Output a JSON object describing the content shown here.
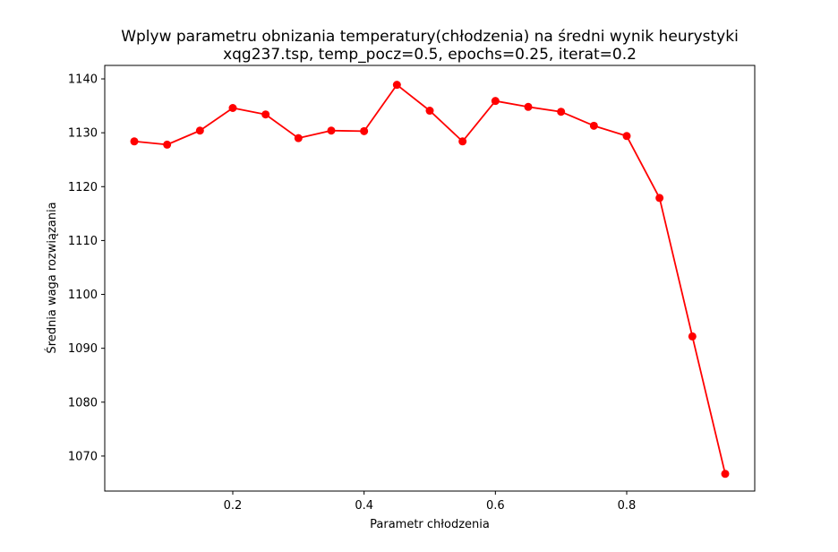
{
  "chart_data": {
    "type": "line",
    "title": "Wplyw parametru obnizania temperatury(chłodzenia) na średni wynik heurystyki",
    "subtitle": "xqg237.tsp, temp_pocz=0.5, epochs=0.25, iterat=0.2",
    "xlabel": "Parametr chłodzenia",
    "ylabel": "Średnia waga rozwiązania",
    "xlim": [
      0.005,
      0.995
    ],
    "ylim": [
      1063.5,
      1142.5
    ],
    "xticks": [
      0.2,
      0.4,
      0.6,
      0.8
    ],
    "xtick_labels": [
      "0.2",
      "0.4",
      "0.6",
      "0.8"
    ],
    "yticks": [
      1070,
      1080,
      1090,
      1100,
      1110,
      1120,
      1130,
      1140
    ],
    "ytick_labels": [
      "1070",
      "1080",
      "1090",
      "1100",
      "1110",
      "1120",
      "1130",
      "1140"
    ],
    "grid": false,
    "series": [
      {
        "color": "#ff0000",
        "marker": "circle",
        "x": [
          0.05,
          0.1,
          0.15,
          0.2,
          0.25,
          0.3,
          0.35,
          0.4,
          0.45,
          0.5,
          0.55,
          0.6,
          0.65,
          0.7,
          0.75,
          0.8,
          0.85,
          0.9,
          0.95
        ],
        "y": [
          1128.4,
          1127.8,
          1130.4,
          1134.6,
          1133.4,
          1129.0,
          1130.4,
          1130.3,
          1138.9,
          1134.1,
          1128.4,
          1135.9,
          1134.8,
          1133.9,
          1131.3,
          1129.4,
          1117.9,
          1092.2,
          1066.7
        ]
      }
    ]
  }
}
